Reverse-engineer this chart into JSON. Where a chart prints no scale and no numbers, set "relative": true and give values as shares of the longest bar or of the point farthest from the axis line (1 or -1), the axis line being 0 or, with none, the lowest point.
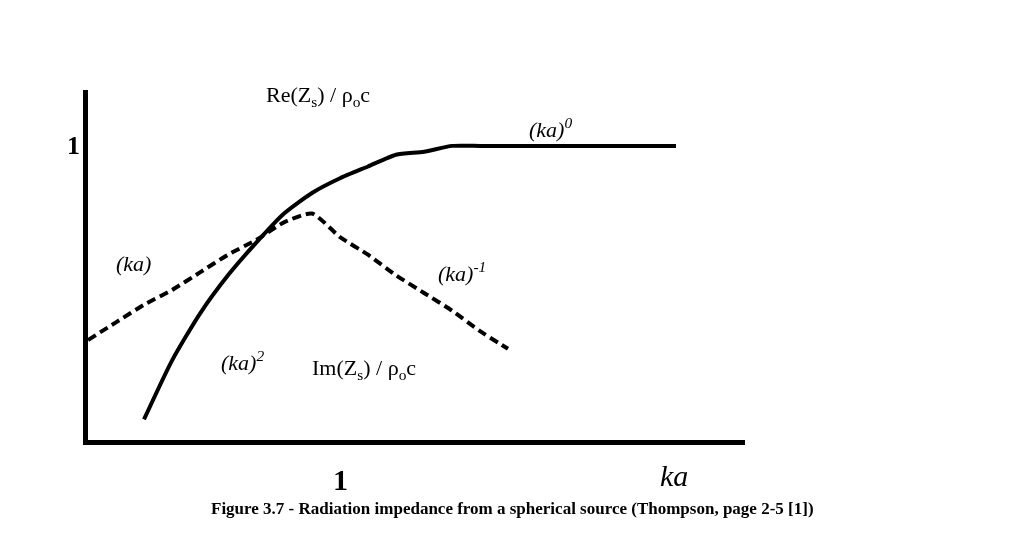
{
  "chart_data": {
    "type": "line",
    "relative": true,
    "xlabel": "ka",
    "marker": "none",
    "grid": false,
    "categories": [
      null,
      null,
      null,
      null,
      null,
      null,
      null,
      null,
      null,
      null,
      null,
      null,
      null,
      null,
      null,
      null,
      null,
      null,
      null,
      null,
      null,
      null
    ],
    "series": [
      {
        "color": "#000000",
        "line_style": "solid",
        "values": [
          null,
          null,
          0.07,
          0.27,
          0.43,
          0.56,
          0.67,
          0.77,
          0.84,
          0.89,
          0.93,
          0.97,
          0.98,
          1,
          1,
          1,
          1,
          1,
          1,
          1,
          1,
          1
        ]
      },
      {
        "color": "#000000",
        "line_style": "dashed",
        "values": [
          0.34,
          0.4,
          0.46,
          0.51,
          0.57,
          0.63,
          0.68,
          0.74,
          0.77,
          0.69,
          0.63,
          0.56,
          0.5,
          0.44,
          0.37,
          0.31,
          null,
          null,
          null,
          null,
          null,
          null
        ]
      }
    ],
    "annotations": [
      "1",
      "1",
      "Re(Z$_{s}$) / ρ$_{o}$c",
      "(ka)$^{0}$",
      "(ka)",
      "(ka)$^{-1}$",
      "(ka)$^{2}$",
      "Im(Z$_{s}$) / ρ$_{o}$c",
      "Figure 3.7 - Radiation impedance from a spherical source (Thompson, page 2-5 [1])"
    ]
  }
}
